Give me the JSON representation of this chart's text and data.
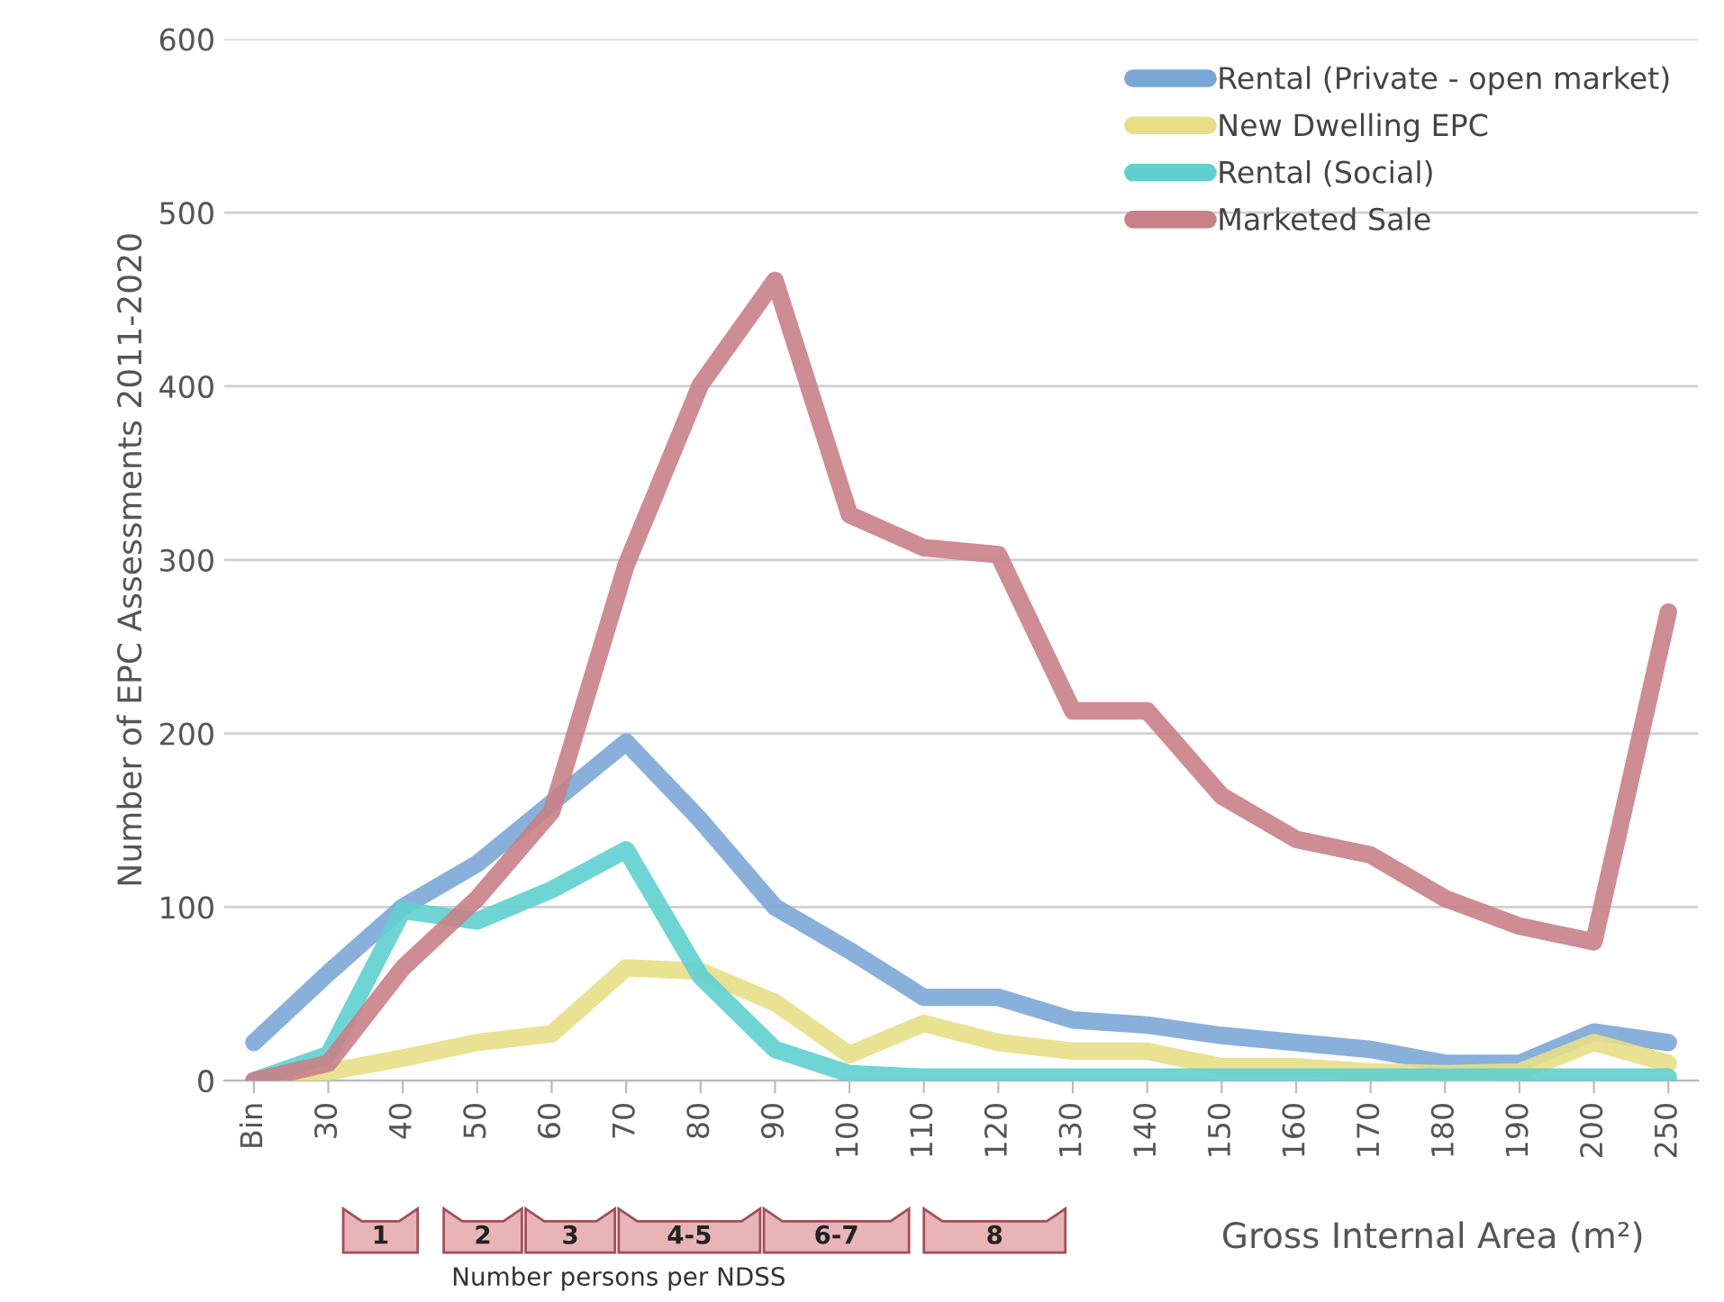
{
  "chart_data": {
    "type": "line",
    "ylabel": "Number of EPC Assessments 2011-2020",
    "xlabel": "Gross Internal Area (m²)",
    "categories": [
      "Bin",
      "30",
      "40",
      "50",
      "60",
      "70",
      "80",
      "90",
      "100",
      "110",
      "120",
      "130",
      "140",
      "150",
      "160",
      "170",
      "180",
      "190",
      "200",
      "250"
    ],
    "series": [
      {
        "name": "Rental (Private - open market)",
        "color": "#7ba7d7",
        "values": [
          22,
          62,
          100,
          125,
          160,
          195,
          150,
          100,
          75,
          48,
          48,
          35,
          32,
          26,
          22,
          18,
          10,
          10,
          28,
          22
        ]
      },
      {
        "name": "New Dwelling EPC",
        "color": "#e8df87",
        "values": [
          0,
          5,
          13,
          22,
          27,
          65,
          63,
          45,
          15,
          33,
          22,
          17,
          17,
          8,
          8,
          5,
          4,
          5,
          22,
          10
        ]
      },
      {
        "name": "Rental (Social)",
        "color": "#5fd0cf",
        "values": [
          0,
          15,
          98,
          92,
          110,
          133,
          60,
          18,
          4,
          2,
          2,
          2,
          2,
          2,
          2,
          2,
          2,
          2,
          2,
          2
        ]
      },
      {
        "name": "Marketed Sale",
        "color": "#c98087",
        "values": [
          0,
          10,
          65,
          105,
          155,
          297,
          401,
          461,
          326,
          307,
          303,
          213,
          213,
          164,
          139,
          130,
          105,
          89,
          80,
          270
        ]
      }
    ],
    "ylim": [
      0,
      600
    ],
    "yticks": [
      0,
      100,
      200,
      300,
      400,
      500,
      600
    ],
    "grid": "y",
    "legend": "top right",
    "annotations": [
      "1",
      "2",
      "3",
      "4-5",
      "6-7",
      "8",
      "Number persons per NDSS"
    ]
  }
}
